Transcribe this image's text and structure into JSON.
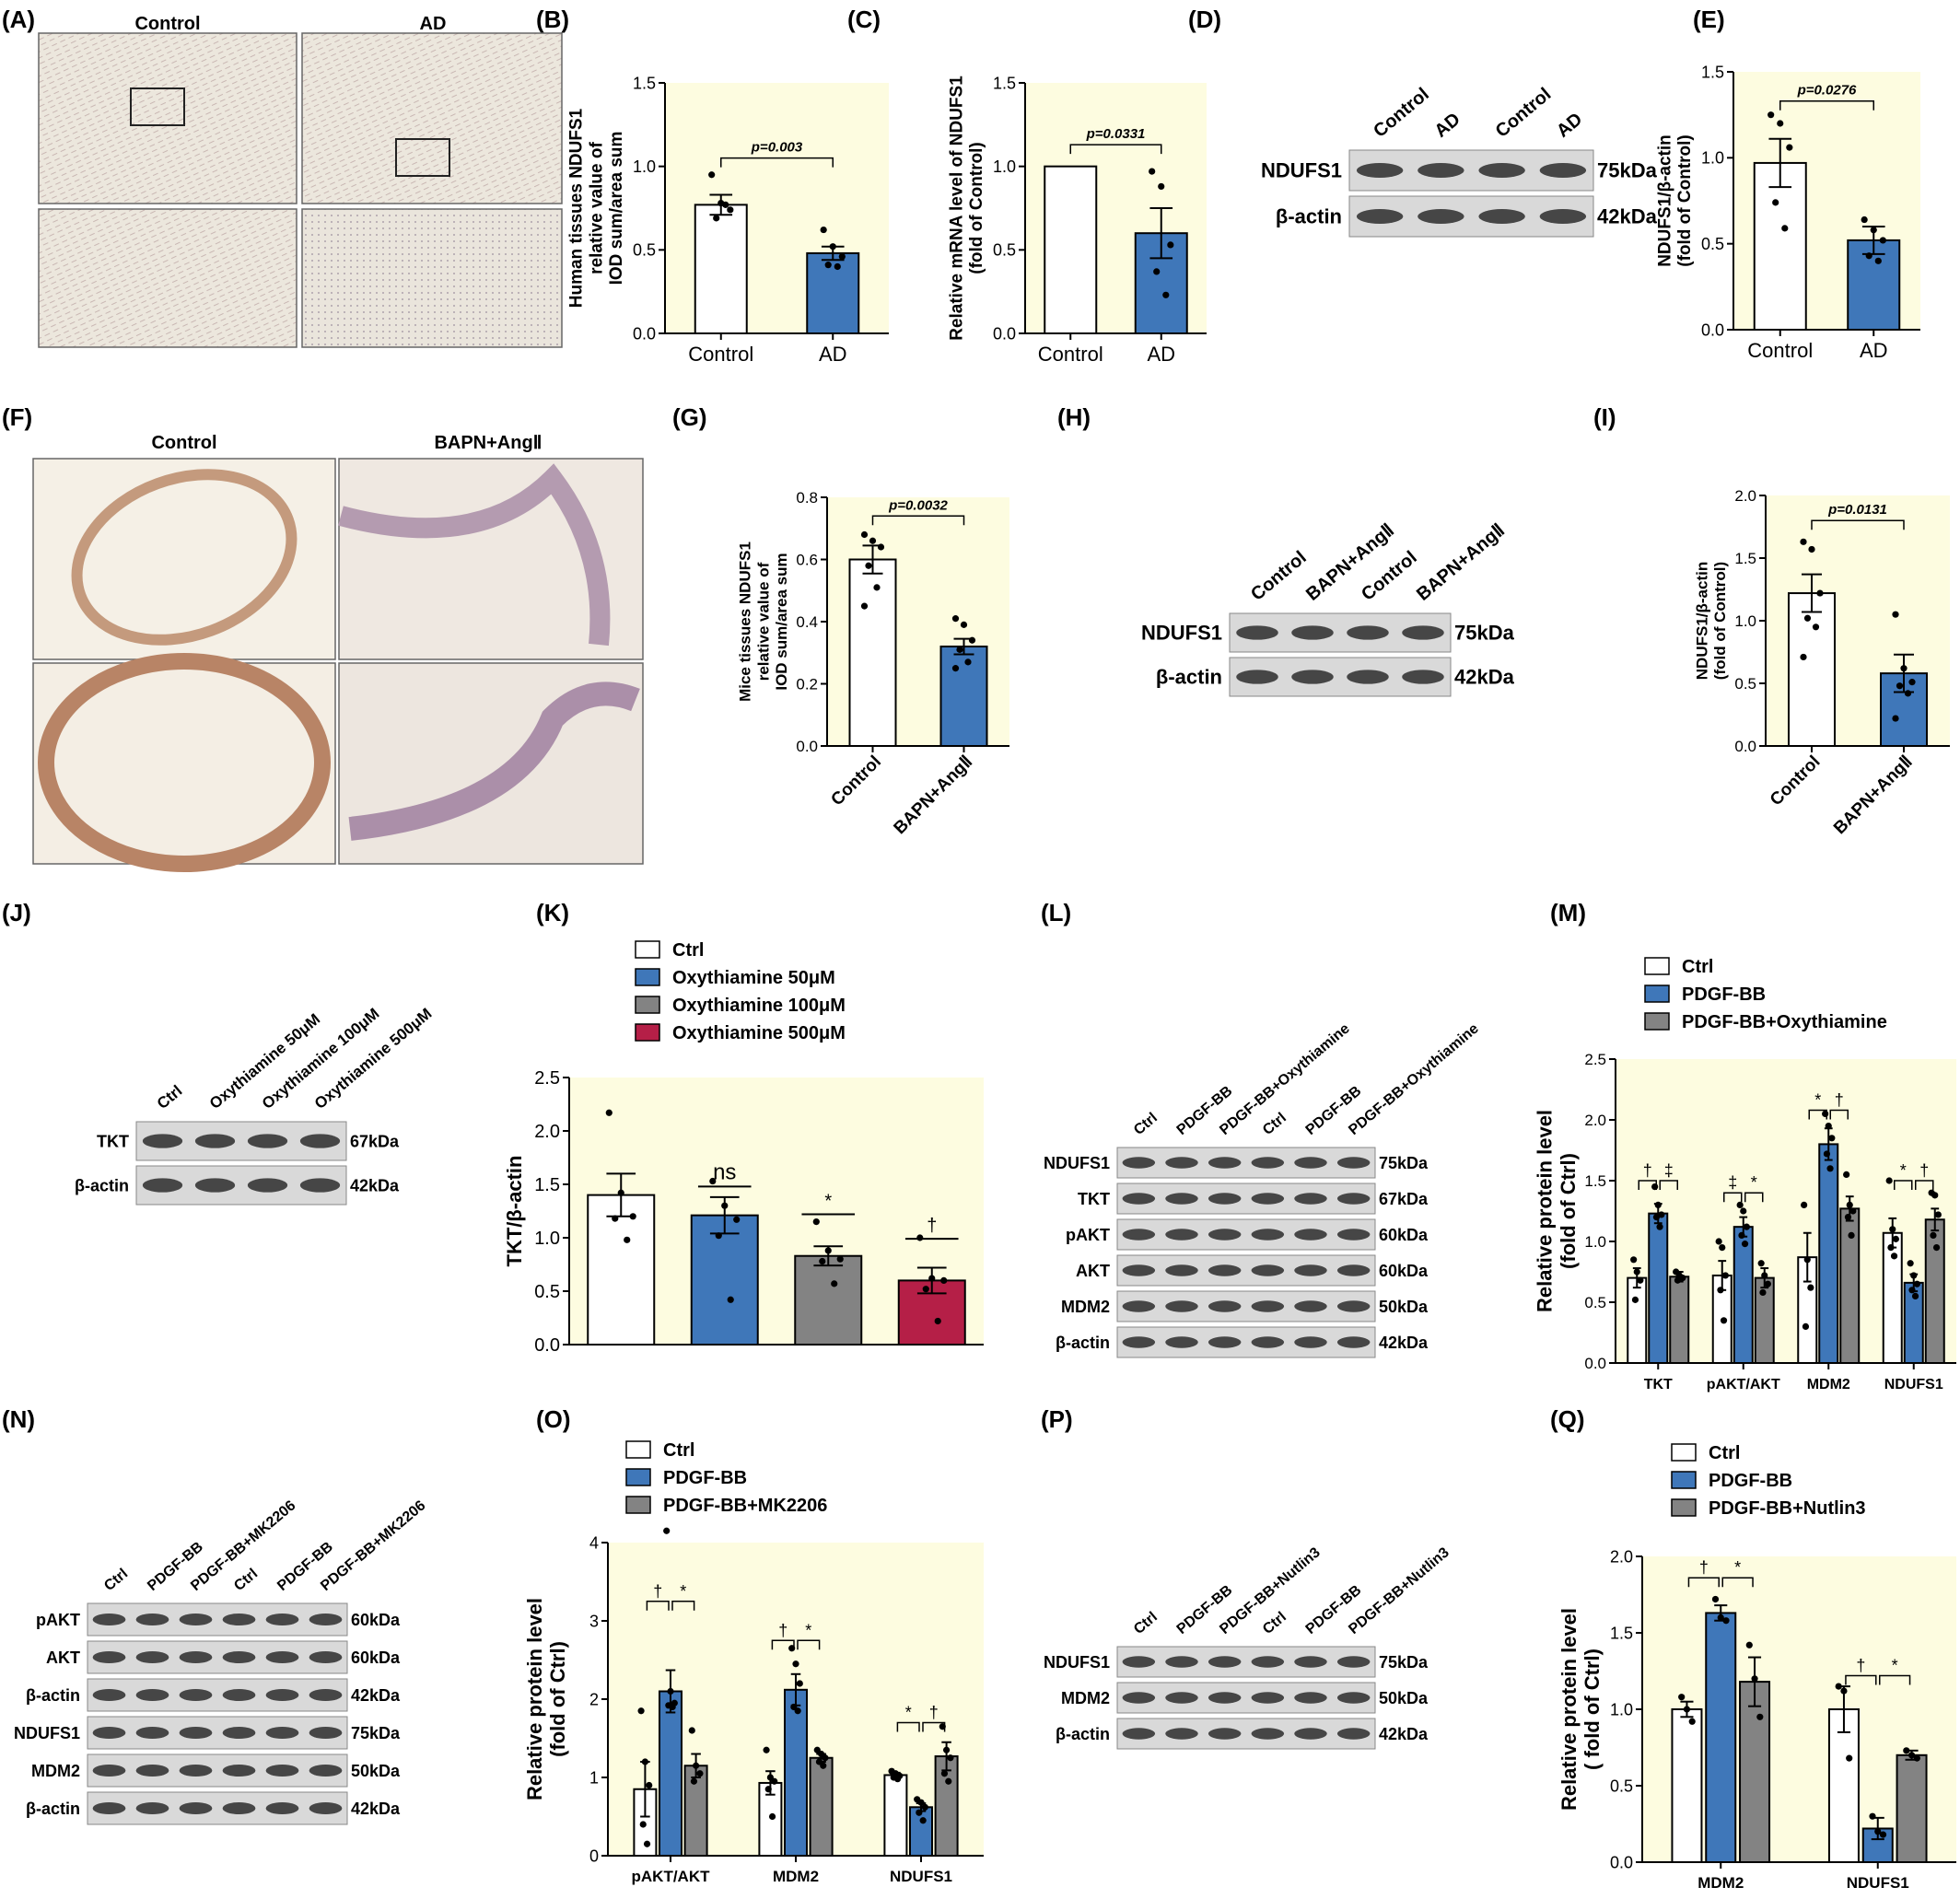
{
  "colors": {
    "control": "#ffffff",
    "blue": "#3f77b9",
    "gray": "#838383",
    "red": "#b51f47",
    "panel_bg": "#fdfce0",
    "axis": "#000000"
  },
  "panels": {
    "A": {
      "letter": "(A)",
      "col1": "Control",
      "col2": "AD"
    },
    "B": {
      "letter": "(B)"
    },
    "C": {
      "letter": "(C)"
    },
    "D": {
      "letter": "(D)",
      "lanes": [
        "Control",
        "AD",
        "Control",
        "AD"
      ],
      "rows": [
        {
          "label": "NDUFS1",
          "kda": "75kDa"
        },
        {
          "label": "β-actin",
          "kda": "42kDa"
        }
      ]
    },
    "E": {
      "letter": "(E)"
    },
    "F": {
      "letter": "(F)",
      "col1": "Control",
      "col2": "BAPN+AngⅡ"
    },
    "G": {
      "letter": "(G)"
    },
    "H": {
      "letter": "(H)",
      "lanes": [
        "Control",
        "BAPN+AngⅡ",
        "Control",
        "BAPN+AngⅡ"
      ],
      "rows": [
        {
          "label": "NDUFS1",
          "kda": "75kDa"
        },
        {
          "label": "β-actin",
          "kda": "42kDa"
        }
      ]
    },
    "I": {
      "letter": "(I)"
    },
    "J": {
      "letter": "(J)",
      "lanes": [
        "Ctrl",
        "Oxythiamine 50μM",
        "Oxythiamine 100μM",
        "Oxythiamine 500μM"
      ],
      "rows": [
        {
          "label": "TKT",
          "kda": "67kDa"
        },
        {
          "label": "β-actin",
          "kda": "42kDa"
        }
      ]
    },
    "K": {
      "letter": "(K)"
    },
    "L": {
      "letter": "(L)",
      "lanes": [
        "Ctrl",
        "PDGF-BB",
        "PDGF-BB+Oxythiamine",
        "Ctrl",
        "PDGF-BB",
        "PDGF-BB+Oxythiamine"
      ],
      "rows": [
        {
          "label": "NDUFS1",
          "kda": "75kDa"
        },
        {
          "label": "TKT",
          "kda": "67kDa"
        },
        {
          "label": "pAKT",
          "kda": "60kDa"
        },
        {
          "label": "AKT",
          "kda": "60kDa"
        },
        {
          "label": "MDM2",
          "kda": "50kDa"
        },
        {
          "label": "β-actin",
          "kda": "42kDa"
        }
      ]
    },
    "M": {
      "letter": "(M)"
    },
    "N": {
      "letter": "(N)",
      "lanes": [
        "Ctrl",
        "PDGF-BB",
        "PDGF-BB+MK2206",
        "Ctrl",
        "PDGF-BB",
        "PDGF-BB+MK2206"
      ],
      "rows": [
        {
          "label": "pAKT",
          "kda": "60kDa"
        },
        {
          "label": "AKT",
          "kda": "60kDa"
        },
        {
          "label": "β-actin",
          "kda": "42kDa"
        },
        {
          "label": "NDUFS1",
          "kda": "75kDa"
        },
        {
          "label": "MDM2",
          "kda": "50kDa"
        },
        {
          "label": "β-actin",
          "kda": "42kDa"
        }
      ]
    },
    "O": {
      "letter": "(O)"
    },
    "P": {
      "letter": "(P)",
      "lanes": [
        "Ctrl",
        "PDGF-BB",
        "PDGF-BB+Nutlin3",
        "Ctrl",
        "PDGF-BB",
        "PDGF-BB+Nutlin3"
      ],
      "rows": [
        {
          "label": "NDUFS1",
          "kda": "75kDa"
        },
        {
          "label": "MDM2",
          "kda": "50kDa"
        },
        {
          "label": "β-actin",
          "kda": "42kDa"
        }
      ]
    },
    "Q": {
      "letter": "(Q)"
    }
  },
  "chart_data": [
    {
      "id": "B",
      "type": "bar",
      "ylabel": [
        "Human tissues NDUFS1",
        "relative value of",
        "IOD sum/area sum"
      ],
      "ylim": [
        0,
        1.5
      ],
      "yticks": [
        "0.0",
        "0.5",
        "1.0",
        "1.5"
      ],
      "categories": [
        "Control",
        "AD"
      ],
      "values": [
        0.77,
        0.48
      ],
      "errors": [
        0.06,
        0.04
      ],
      "colors": [
        "#ffffff",
        "#3f77b9"
      ],
      "points": [
        [
          0.95,
          0.78,
          0.74,
          0.69,
          0.77
        ],
        [
          0.62,
          0.52,
          0.46,
          0.41,
          0.4
        ]
      ],
      "annotations": [
        {
          "from": 0,
          "to": 1,
          "text": "p=0.003",
          "y": 1.05
        }
      ]
    },
    {
      "id": "C",
      "type": "bar",
      "ylabel": [
        "Relative mRNA level of NDUFS1",
        "(fold of Control)"
      ],
      "ylim": [
        0,
        1.5
      ],
      "yticks": [
        "0.0",
        "0.5",
        "1.0",
        "1.5"
      ],
      "categories": [
        "Control",
        "AD"
      ],
      "values": [
        1.0,
        0.6
      ],
      "errors": [
        0.0,
        0.15
      ],
      "colors": [
        "#ffffff",
        "#3f77b9"
      ],
      "points": [
        [],
        [
          0.97,
          0.88,
          0.53,
          0.37,
          0.23
        ]
      ],
      "annotations": [
        {
          "from": 0,
          "to": 1,
          "text": "p=0.0331",
          "y": 1.13
        }
      ]
    },
    {
      "id": "E",
      "type": "bar",
      "ylabel": [
        "NDUFS1/β-actin",
        "(fold of Control)"
      ],
      "ylim": [
        0,
        1.5
      ],
      "yticks": [
        "0.0",
        "0.5",
        "1.0",
        "1.5"
      ],
      "categories": [
        "Control",
        "AD"
      ],
      "values": [
        0.97,
        0.52
      ],
      "errors": [
        0.14,
        0.08
      ],
      "colors": [
        "#ffffff",
        "#3f77b9"
      ],
      "points": [
        [
          1.25,
          1.2,
          1.06,
          0.74,
          0.59
        ],
        [
          0.64,
          0.58,
          0.52,
          0.43,
          0.4
        ]
      ],
      "annotations": [
        {
          "from": 0,
          "to": 1,
          "text": "p=0.0276",
          "y": 1.33
        }
      ]
    },
    {
      "id": "G",
      "type": "bar",
      "ylabel": [
        "Mice tissues NDUFS1",
        "relative value of",
        "IOD sum/area sum"
      ],
      "ylim": [
        0,
        0.8
      ],
      "yticks": [
        "0.0",
        "0.2",
        "0.4",
        "0.6",
        "0.8"
      ],
      "categories": [
        "Control",
        "BAPN+AngⅡ"
      ],
      "rotate": true,
      "values": [
        0.6,
        0.32
      ],
      "errors": [
        0.045,
        0.025
      ],
      "colors": [
        "#ffffff",
        "#3f77b9"
      ],
      "points": [
        [
          0.68,
          0.66,
          0.64,
          0.58,
          0.51,
          0.45
        ],
        [
          0.41,
          0.39,
          0.34,
          0.31,
          0.27,
          0.25
        ]
      ],
      "annotations": [
        {
          "from": 0,
          "to": 1,
          "text": "p=0.0032",
          "y": 0.74
        }
      ]
    },
    {
      "id": "I",
      "type": "bar",
      "ylabel": [
        "NDUFS1/β-actin",
        "(fold of Control)"
      ],
      "ylim": [
        0,
        2.0
      ],
      "yticks": [
        "0.0",
        "0.5",
        "1.0",
        "1.5",
        "2.0"
      ],
      "categories": [
        "Control",
        "BAPN+AngⅡ"
      ],
      "rotate": true,
      "values": [
        1.22,
        0.58
      ],
      "errors": [
        0.15,
        0.15
      ],
      "colors": [
        "#ffffff",
        "#3f77b9"
      ],
      "points": [
        [
          1.63,
          1.57,
          1.22,
          1.02,
          0.95,
          0.71
        ],
        [
          1.05,
          0.62,
          0.51,
          0.48,
          0.42,
          0.22
        ]
      ],
      "annotations": [
        {
          "from": 0,
          "to": 1,
          "text": "p=0.0131",
          "y": 1.8
        }
      ]
    },
    {
      "id": "K",
      "type": "bar",
      "ylabel": [
        "TKT/β-actin"
      ],
      "ylim": [
        0,
        2.5
      ],
      "yticks": [
        "0.0",
        "0.5",
        "1.0",
        "1.5",
        "2.0",
        "2.5"
      ],
      "categories": [
        "Ctrl",
        "Oxythiamine 50μM",
        "Oxythiamine 100μM",
        "Oxythiamine 500μM"
      ],
      "hide_x": true,
      "values": [
        1.4,
        1.21,
        0.83,
        0.6
      ],
      "errors": [
        0.2,
        0.17,
        0.09,
        0.12
      ],
      "colors": [
        "#ffffff",
        "#3f77b9",
        "#838383",
        "#b51f47"
      ],
      "points": [
        [
          2.17,
          1.42,
          1.2,
          1.18,
          0.98
        ],
        [
          1.53,
          1.3,
          1.17,
          1.02,
          0.42
        ],
        [
          1.15,
          0.88,
          0.8,
          0.78,
          0.57
        ],
        [
          1.0,
          0.62,
          0.6,
          0.52,
          0.22
        ]
      ],
      "marks": [
        {
          "i": 1,
          "text": "ns",
          "y": 1.48,
          "line": true
        },
        {
          "i": 2,
          "text": "*",
          "y": 1.22,
          "line": true
        },
        {
          "i": 3,
          "text": "†",
          "y": 0.99,
          "line": true
        }
      ],
      "legend": [
        "Ctrl",
        "Oxythiamine 50μM",
        "Oxythiamine 100μM",
        "Oxythiamine 500μM"
      ]
    },
    {
      "id": "M",
      "type": "bar",
      "ylabel": [
        "Relative protein level",
        "(fold of Ctrl)"
      ],
      "ylim": [
        0,
        2.5
      ],
      "yticks": [
        "0.0",
        "0.5",
        "1.0",
        "1.5",
        "2.0",
        "2.5"
      ],
      "groups": [
        "TKT",
        "pAKT/AKT",
        "MDM2",
        "NDUFS1"
      ],
      "colors": [
        "#ffffff",
        "#3f77b9",
        "#838383"
      ],
      "series": [
        {
          "name": "Ctrl",
          "values": [
            0.7,
            0.72,
            0.87,
            1.07
          ],
          "errors": [
            0.08,
            0.12,
            0.2,
            0.12
          ],
          "points": [
            [
              0.85,
              0.75,
              0.68,
              0.52
            ],
            [
              1.0,
              0.95,
              0.72,
              0.6,
              0.35
            ],
            [
              1.3,
              0.85,
              0.62,
              0.3
            ],
            [
              1.5,
              1.1,
              1.02,
              0.95,
              0.88
            ]
          ]
        },
        {
          "name": "PDGF-BB",
          "values": [
            1.23,
            1.12,
            1.8,
            0.66
          ],
          "errors": [
            0.08,
            0.08,
            0.13,
            0.07
          ],
          "points": [
            [
              1.45,
              1.3,
              1.22,
              1.2,
              1.12
            ],
            [
              1.3,
              1.25,
              1.12,
              1.05,
              0.98
            ],
            [
              2.05,
              1.95,
              1.85,
              1.72,
              1.6
            ],
            [
              0.82,
              0.72,
              0.65,
              0.6,
              0.55
            ]
          ]
        },
        {
          "name": "PDGF-BB+Oxythiamine",
          "values": [
            0.71,
            0.7,
            1.27,
            1.18
          ],
          "errors": [
            0.04,
            0.08,
            0.1,
            0.09
          ],
          "points": [
            [
              0.75,
              0.72,
              0.7,
              0.68
            ],
            [
              0.82,
              0.72,
              0.65,
              0.58
            ],
            [
              1.55,
              1.3,
              1.25,
              1.2,
              1.05
            ],
            [
              1.4,
              1.38,
              1.22,
              1.05,
              0.95
            ]
          ]
        }
      ],
      "brackets": [
        {
          "g": 0,
          "from": 0,
          "to": 1,
          "text": "†",
          "y": 1.5
        },
        {
          "g": 0,
          "from": 1,
          "to": 2,
          "text": "‡",
          "y": 1.5
        },
        {
          "g": 1,
          "from": 0,
          "to": 1,
          "text": "‡",
          "y": 1.4
        },
        {
          "g": 1,
          "from": 1,
          "to": 2,
          "text": "*",
          "y": 1.4
        },
        {
          "g": 2,
          "from": 0,
          "to": 1,
          "text": "*",
          "y": 2.08
        },
        {
          "g": 2,
          "from": 1,
          "to": 2,
          "text": "†",
          "y": 2.08
        },
        {
          "g": 3,
          "from": 0,
          "to": 1,
          "text": "*",
          "y": 1.5
        },
        {
          "g": 3,
          "from": 1,
          "to": 2,
          "text": "†",
          "y": 1.5
        }
      ],
      "legend": [
        "Ctrl",
        "PDGF-BB",
        "PDGF-BB+Oxythiamine"
      ]
    },
    {
      "id": "O",
      "type": "bar",
      "ylabel": [
        "Relative protein level",
        "(fold of Ctrl)"
      ],
      "ylim": [
        0,
        4
      ],
      "yticks": [
        "0",
        "1",
        "2",
        "3",
        "4"
      ],
      "groups": [
        "pAKT/AKT",
        "MDM2",
        "NDUFS1"
      ],
      "colors": [
        "#ffffff",
        "#3f77b9",
        "#838383"
      ],
      "series": [
        {
          "name": "Ctrl",
          "values": [
            0.85,
            0.93,
            1.03
          ],
          "errors": [
            0.35,
            0.15,
            0.03
          ],
          "points": [
            [
              1.85,
              1.2,
              0.9,
              0.4,
              0.15
            ],
            [
              1.35,
              1.0,
              0.95,
              0.85,
              0.5
            ],
            [
              1.08,
              1.05,
              1.02,
              1.0,
              0.98
            ]
          ]
        },
        {
          "name": "PDGF-BB",
          "values": [
            2.1,
            2.12,
            0.62
          ],
          "errors": [
            0.27,
            0.2,
            0.05
          ],
          "points": [
            [
              4.15,
              2.1,
              1.95,
              1.92,
              1.9
            ],
            [
              2.65,
              2.45,
              2.2,
              1.9,
              1.85
            ],
            [
              0.72,
              0.68,
              0.62,
              0.55,
              0.45
            ]
          ]
        },
        {
          "name": "PDGF-BB+MK2206",
          "values": [
            1.15,
            1.25,
            1.27
          ],
          "errors": [
            0.15,
            0.05,
            0.18
          ],
          "points": [
            [
              1.6,
              1.15,
              1.05,
              0.95
            ],
            [
              1.35,
              1.3,
              1.25,
              1.2,
              1.15
            ],
            [
              1.65,
              1.35,
              1.25,
              1.05,
              0.95
            ]
          ]
        }
      ],
      "brackets": [
        {
          "g": 0,
          "from": 0,
          "to": 1,
          "text": "†",
          "y": 3.25
        },
        {
          "g": 0,
          "from": 1,
          "to": 2,
          "text": "*",
          "y": 3.25
        },
        {
          "g": 1,
          "from": 0,
          "to": 1,
          "text": "†",
          "y": 2.75
        },
        {
          "g": 1,
          "from": 1,
          "to": 2,
          "text": "*",
          "y": 2.75
        },
        {
          "g": 2,
          "from": 0,
          "to": 1,
          "text": "*",
          "y": 1.7
        },
        {
          "g": 2,
          "from": 1,
          "to": 2,
          "text": "†",
          "y": 1.7
        }
      ],
      "legend": [
        "Ctrl",
        "PDGF-BB",
        "PDGF-BB+MK2206"
      ]
    },
    {
      "id": "Q",
      "type": "bar",
      "ylabel": [
        "Relative protein level",
        "( fold of Ctrl)"
      ],
      "ylim": [
        0,
        2.0
      ],
      "yticks": [
        "0.0",
        "0.5",
        "1.0",
        "1.5",
        "2.0"
      ],
      "groups": [
        "MDM2",
        "NDUFS1"
      ],
      "colors": [
        "#ffffff",
        "#3f77b9",
        "#838383"
      ],
      "series": [
        {
          "name": "Ctrl",
          "values": [
            1.0,
            1.0
          ],
          "errors": [
            0.05,
            0.15
          ],
          "points": [
            [
              1.08,
              1.0,
              0.92
            ],
            [
              1.15,
              1.12,
              0.68
            ]
          ]
        },
        {
          "name": "PDGF-BB",
          "values": [
            1.63,
            0.22
          ],
          "errors": [
            0.05,
            0.07
          ],
          "points": [
            [
              1.72,
              1.6,
              1.58
            ],
            [
              0.3,
              0.2,
              0.18
            ]
          ]
        },
        {
          "name": "PDGF-BB+Nutlin3",
          "values": [
            1.18,
            0.7
          ],
          "errors": [
            0.16,
            0.03
          ],
          "points": [
            [
              1.42,
              1.2,
              0.95
            ],
            [
              0.73,
              0.7,
              0.68
            ]
          ]
        }
      ],
      "brackets": [
        {
          "g": 0,
          "from": 0,
          "to": 1,
          "text": "†",
          "y": 1.86
        },
        {
          "g": 0,
          "from": 1,
          "to": 2,
          "text": "*",
          "y": 1.86
        },
        {
          "g": 1,
          "from": 0,
          "to": 1,
          "text": "†",
          "y": 1.22
        },
        {
          "g": 1,
          "from": 1,
          "to": 2,
          "text": "*",
          "y": 1.22
        }
      ],
      "legend": [
        "Ctrl",
        "PDGF-BB",
        "PDGF-BB+Nutlin3"
      ]
    }
  ]
}
